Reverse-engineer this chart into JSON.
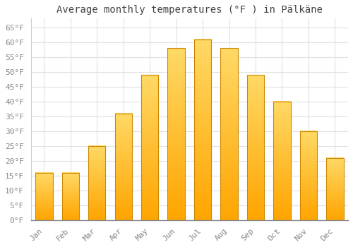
{
  "title": "Average monthly temperatures (°F ) in Pälkäne",
  "months": [
    "Jan",
    "Feb",
    "Mar",
    "Apr",
    "May",
    "Jun",
    "Jul",
    "Aug",
    "Sep",
    "Oct",
    "Nov",
    "Dec"
  ],
  "values": [
    16,
    16,
    25,
    36,
    49,
    58,
    61,
    58,
    49,
    40,
    30,
    21
  ],
  "bar_color_bottom": "#FFB300",
  "bar_color_top": "#FFD966",
  "bar_edge_color": "#CC8800",
  "background_color": "#FFFFFF",
  "ylim": [
    0,
    68
  ],
  "yticks": [
    0,
    5,
    10,
    15,
    20,
    25,
    30,
    35,
    40,
    45,
    50,
    55,
    60,
    65
  ],
  "ytick_labels": [
    "0°F",
    "5°F",
    "10°F",
    "15°F",
    "20°F",
    "25°F",
    "30°F",
    "35°F",
    "40°F",
    "45°F",
    "50°F",
    "55°F",
    "60°F",
    "65°F"
  ],
  "grid_color": "#E0E0E0",
  "tick_label_color": "#888888",
  "title_fontsize": 10,
  "tick_fontsize": 8,
  "font_family": "monospace"
}
